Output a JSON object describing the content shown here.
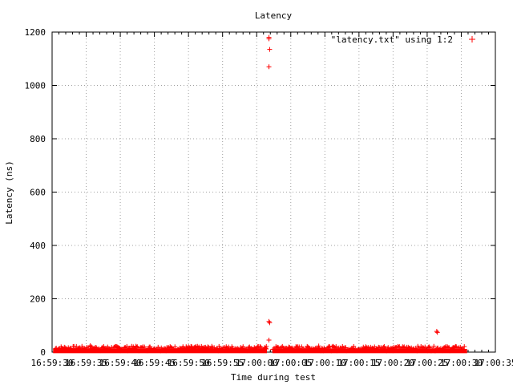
{
  "chart_data": {
    "type": "scatter",
    "title": "Latency",
    "xlabel": "Time during test",
    "ylabel": "Latency (ns)",
    "ylim": [
      0,
      1200
    ],
    "yticks": [
      0,
      200,
      400,
      600,
      800,
      1000,
      1200
    ],
    "xlim_seconds": [
      0,
      65
    ],
    "xticks": [
      {
        "t": 0,
        "label": "16:59:30"
      },
      {
        "t": 5,
        "label": "16:59:35"
      },
      {
        "t": 10,
        "label": "16:59:40"
      },
      {
        "t": 15,
        "label": "16:59:45"
      },
      {
        "t": 20,
        "label": "16:59:50"
      },
      {
        "t": 25,
        "label": "16:59:55"
      },
      {
        "t": 30,
        "label": "17:00:00"
      },
      {
        "t": 35,
        "label": "17:00:05"
      },
      {
        "t": 40,
        "label": "17:00:10"
      },
      {
        "t": 45,
        "label": "17:00:15"
      },
      {
        "t": 50,
        "label": "17:00:20"
      },
      {
        "t": 55,
        "label": "17:00:25"
      },
      {
        "t": 60,
        "label": "17:00:30"
      },
      {
        "t": 65,
        "label": "17:00:35"
      }
    ],
    "grid": true,
    "legend": {
      "position": "top-right"
    },
    "series": [
      {
        "name": "\"latency.txt\" using 1:2",
        "color": "#ff0000",
        "marker": "plus",
        "baseline_band": {
          "t_start": 0.5,
          "t_end": 60.5,
          "gap": [
            31.5,
            32.3
          ],
          "min": 5,
          "max": 22
        },
        "points": [
          {
            "t": 31.8,
            "y": 1175
          },
          {
            "t": 31.8,
            "y": 1180
          },
          {
            "t": 31.9,
            "y": 1135
          },
          {
            "t": 31.8,
            "y": 1070
          },
          {
            "t": 31.8,
            "y": 115
          },
          {
            "t": 31.9,
            "y": 110
          },
          {
            "t": 31.8,
            "y": 45
          },
          {
            "t": 31.4,
            "y": 12
          },
          {
            "t": 56.4,
            "y": 78
          },
          {
            "t": 56.5,
            "y": 74
          },
          {
            "t": 5.6,
            "y": 24
          },
          {
            "t": 12.3,
            "y": 22
          },
          {
            "t": 39.1,
            "y": 23
          },
          {
            "t": 48.7,
            "y": 21
          }
        ]
      }
    ]
  }
}
